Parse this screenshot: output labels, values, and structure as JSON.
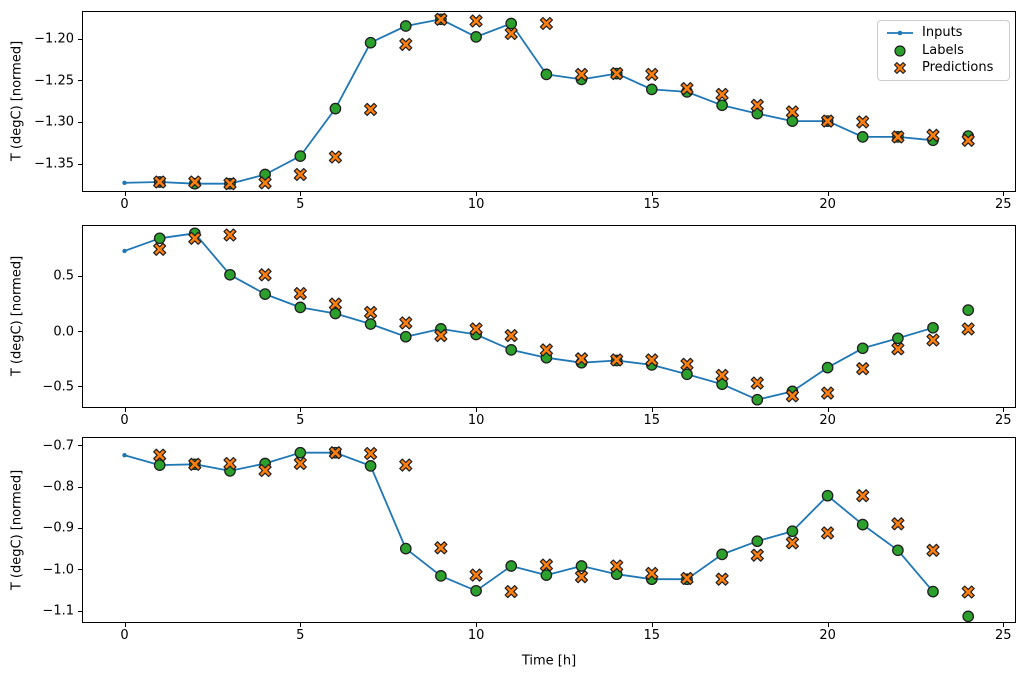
{
  "x_axis": {
    "label": "Time [h]",
    "ticks": [
      0,
      5,
      10,
      15,
      20,
      25
    ],
    "tick_labels": [
      "0",
      "5",
      "10",
      "15",
      "20",
      "25"
    ]
  },
  "colors": {
    "inputs": "#1f77b4",
    "labels": "#2ca02c",
    "predictions": "#ff7f0e",
    "marker_edge": "#1f1f1f",
    "spine": "#000000",
    "legend_border": "#cccccc"
  },
  "legend": {
    "position": "top-right-of-first-subplot",
    "entries": [
      {
        "label": "Inputs",
        "marker": "line-with-dot"
      },
      {
        "label": "Labels",
        "marker": "circle"
      },
      {
        "label": "Predictions",
        "marker": "x"
      }
    ]
  },
  "chart_data": [
    {
      "type": "line",
      "subtype": "line-plus-scatter",
      "title": "",
      "xlabel": "",
      "ylabel": "T (degC) [normed]",
      "grid": false,
      "xlim": [
        -1.21,
        25.36
      ],
      "ylim": [
        -1.384,
        -1.167
      ],
      "y_ticks": {
        "values": [
          -1.2,
          -1.25,
          -1.3,
          -1.35
        ],
        "labels": [
          "−1.20",
          "−1.25",
          "−1.30",
          "−1.35"
        ]
      },
      "series": [
        {
          "name": "Inputs",
          "kind": "line",
          "marker": "dot",
          "x": [
            0,
            1,
            2,
            3,
            4,
            5,
            6,
            7,
            8,
            9,
            10,
            11,
            12,
            13,
            14,
            15,
            16,
            17,
            18,
            19,
            20,
            21,
            22,
            23
          ],
          "y": [
            -1.373,
            -1.372,
            -1.374,
            -1.374,
            -1.363,
            -1.341,
            -1.284,
            -1.205,
            -1.185,
            -1.177,
            -1.198,
            -1.182,
            -1.243,
            -1.249,
            -1.242,
            -1.261,
            -1.264,
            -1.28,
            -1.29,
            -1.299,
            -1.299,
            -1.318,
            -1.318,
            -1.322
          ]
        },
        {
          "name": "Labels",
          "kind": "scatter",
          "marker": "circle",
          "x": [
            1,
            2,
            3,
            4,
            5,
            6,
            7,
            8,
            9,
            10,
            11,
            12,
            13,
            14,
            15,
            16,
            17,
            18,
            19,
            20,
            21,
            22,
            23,
            24
          ],
          "y": [
            -1.372,
            -1.374,
            -1.374,
            -1.363,
            -1.341,
            -1.284,
            -1.205,
            -1.185,
            -1.177,
            -1.198,
            -1.182,
            -1.243,
            -1.249,
            -1.242,
            -1.261,
            -1.264,
            -1.28,
            -1.29,
            -1.299,
            -1.299,
            -1.318,
            -1.318,
            -1.322,
            -1.317
          ]
        },
        {
          "name": "Predictions",
          "kind": "scatter",
          "marker": "x",
          "x": [
            1,
            2,
            3,
            4,
            5,
            6,
            7,
            8,
            9,
            10,
            11,
            12,
            13,
            14,
            15,
            16,
            17,
            18,
            19,
            20,
            21,
            22,
            23,
            24
          ],
          "y": [
            -1.372,
            -1.372,
            -1.374,
            -1.373,
            -1.363,
            -1.342,
            -1.285,
            -1.207,
            -1.177,
            -1.179,
            -1.194,
            -1.182,
            -1.243,
            -1.242,
            -1.243,
            -1.26,
            -1.267,
            -1.28,
            -1.288,
            -1.299,
            -1.3,
            -1.318,
            -1.316,
            -1.322
          ]
        }
      ]
    },
    {
      "type": "line",
      "subtype": "line-plus-scatter",
      "title": "",
      "xlabel": "",
      "ylabel": "T (degC) [normed]",
      "grid": false,
      "xlim": [
        -1.21,
        25.36
      ],
      "ylim": [
        -0.695,
        0.96
      ],
      "y_ticks": {
        "values": [
          0.5,
          0.0,
          -0.5
        ],
        "labels": [
          "0.5",
          "0.0",
          "−0.5"
        ]
      },
      "series": [
        {
          "name": "Inputs",
          "kind": "line",
          "marker": "dot",
          "x": [
            0,
            1,
            2,
            3,
            4,
            5,
            6,
            7,
            8,
            9,
            10,
            11,
            12,
            13,
            14,
            15,
            16,
            17,
            18,
            19,
            20,
            21,
            22,
            23
          ],
          "y": [
            0.725,
            0.84,
            0.885,
            0.51,
            0.335,
            0.215,
            0.16,
            0.065,
            -0.05,
            0.02,
            -0.03,
            -0.17,
            -0.24,
            -0.285,
            -0.265,
            -0.305,
            -0.39,
            -0.48,
            -0.62,
            -0.545,
            -0.33,
            -0.155,
            -0.065,
            0.03
          ]
        },
        {
          "name": "Labels",
          "kind": "scatter",
          "marker": "circle",
          "x": [
            1,
            2,
            3,
            4,
            5,
            6,
            7,
            8,
            9,
            10,
            11,
            12,
            13,
            14,
            15,
            16,
            17,
            18,
            19,
            20,
            21,
            22,
            23,
            24
          ],
          "y": [
            0.84,
            0.885,
            0.51,
            0.335,
            0.215,
            0.16,
            0.065,
            -0.05,
            0.02,
            -0.03,
            -0.17,
            -0.24,
            -0.285,
            -0.265,
            -0.305,
            -0.39,
            -0.48,
            -0.62,
            -0.545,
            -0.33,
            -0.155,
            -0.065,
            0.03,
            0.19
          ]
        },
        {
          "name": "Predictions",
          "kind": "scatter",
          "marker": "x",
          "x": [
            1,
            2,
            3,
            4,
            5,
            6,
            7,
            8,
            9,
            10,
            11,
            12,
            13,
            14,
            15,
            16,
            17,
            18,
            19,
            20,
            21,
            22,
            23,
            24
          ],
          "y": [
            0.74,
            0.84,
            0.87,
            0.51,
            0.34,
            0.245,
            0.17,
            0.075,
            -0.04,
            0.02,
            -0.04,
            -0.17,
            -0.25,
            -0.26,
            -0.26,
            -0.3,
            -0.4,
            -0.47,
            -0.585,
            -0.56,
            -0.34,
            -0.16,
            -0.08,
            0.02
          ]
        }
      ]
    },
    {
      "type": "line",
      "subtype": "line-plus-scatter",
      "title": "",
      "xlabel": "Time [h]",
      "ylabel": "T (degC) [normed]",
      "grid": false,
      "xlim": [
        -1.21,
        25.36
      ],
      "ylim": [
        -1.13,
        -0.68
      ],
      "y_ticks": {
        "values": [
          -0.7,
          -0.8,
          -0.9,
          -1.0,
          -1.1
        ],
        "labels": [
          "−0.7",
          "−0.8",
          "−0.9",
          "−1.0",
          "−1.1"
        ]
      },
      "series": [
        {
          "name": "Inputs",
          "kind": "line",
          "marker": "dot",
          "x": [
            0,
            1,
            2,
            3,
            4,
            5,
            6,
            7,
            8,
            9,
            10,
            11,
            12,
            13,
            14,
            15,
            16,
            17,
            18,
            19,
            20,
            21,
            22,
            23
          ],
          "y": [
            -0.724,
            -0.748,
            -0.746,
            -0.762,
            -0.744,
            -0.718,
            -0.718,
            -0.75,
            -0.95,
            -1.016,
            -1.052,
            -0.992,
            -1.014,
            -0.992,
            -1.012,
            -1.024,
            -1.024,
            -0.964,
            -0.932,
            -0.908,
            -0.822,
            -0.892,
            -0.954,
            -1.054
          ]
        },
        {
          "name": "Labels",
          "kind": "scatter",
          "marker": "circle",
          "x": [
            1,
            2,
            3,
            4,
            5,
            6,
            7,
            8,
            9,
            10,
            11,
            12,
            13,
            14,
            15,
            16,
            17,
            18,
            19,
            20,
            21,
            22,
            23,
            24
          ],
          "y": [
            -0.748,
            -0.746,
            -0.762,
            -0.744,
            -0.718,
            -0.718,
            -0.75,
            -0.95,
            -1.016,
            -1.052,
            -0.992,
            -1.014,
            -0.992,
            -1.012,
            -1.024,
            -1.024,
            -0.964,
            -0.932,
            -0.908,
            -0.822,
            -0.892,
            -0.954,
            -1.054,
            -1.114
          ]
        },
        {
          "name": "Predictions",
          "kind": "scatter",
          "marker": "x",
          "x": [
            1,
            2,
            3,
            4,
            5,
            6,
            7,
            8,
            9,
            10,
            11,
            12,
            13,
            14,
            15,
            16,
            17,
            18,
            19,
            20,
            21,
            22,
            23,
            24
          ],
          "y": [
            -0.724,
            -0.746,
            -0.744,
            -0.761,
            -0.744,
            -0.718,
            -0.72,
            -0.748,
            -0.948,
            -1.014,
            -1.054,
            -0.99,
            -1.018,
            -0.992,
            -1.01,
            -1.022,
            -1.024,
            -0.966,
            -0.936,
            -0.912,
            -0.822,
            -0.89,
            -0.954,
            -1.055
          ]
        }
      ]
    }
  ]
}
